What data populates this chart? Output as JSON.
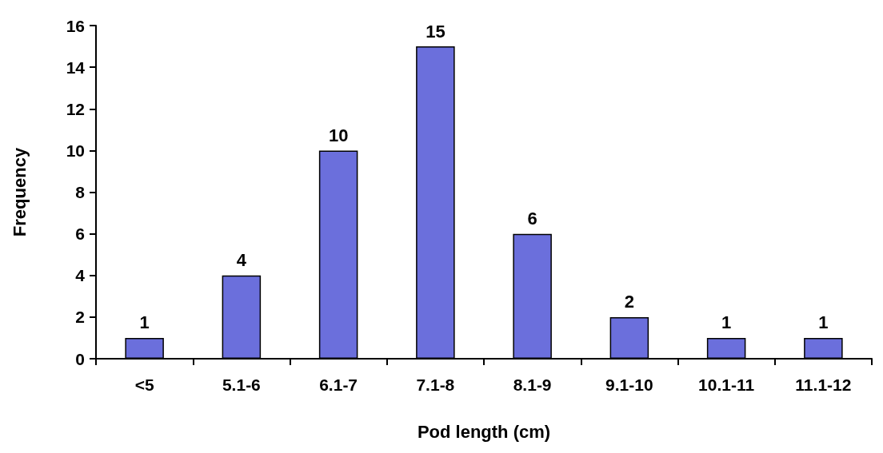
{
  "chart_data": {
    "type": "bar",
    "xlabel": "Pod length (cm)",
    "ylabel": "Frequency",
    "categories": [
      "<5",
      "5.1-6",
      "6.1-7",
      "7.1-8",
      "8.1-9",
      "9.1-10",
      "10.1-11",
      "11.1-12"
    ],
    "values": [
      1,
      4,
      10,
      15,
      6,
      2,
      1,
      1
    ],
    "color": "#6b6fdc",
    "ylim": [
      0,
      16
    ],
    "yticks": [
      0,
      2,
      4,
      6,
      8,
      10,
      12,
      14,
      16
    ],
    "grid": false,
    "data_labels": true
  }
}
